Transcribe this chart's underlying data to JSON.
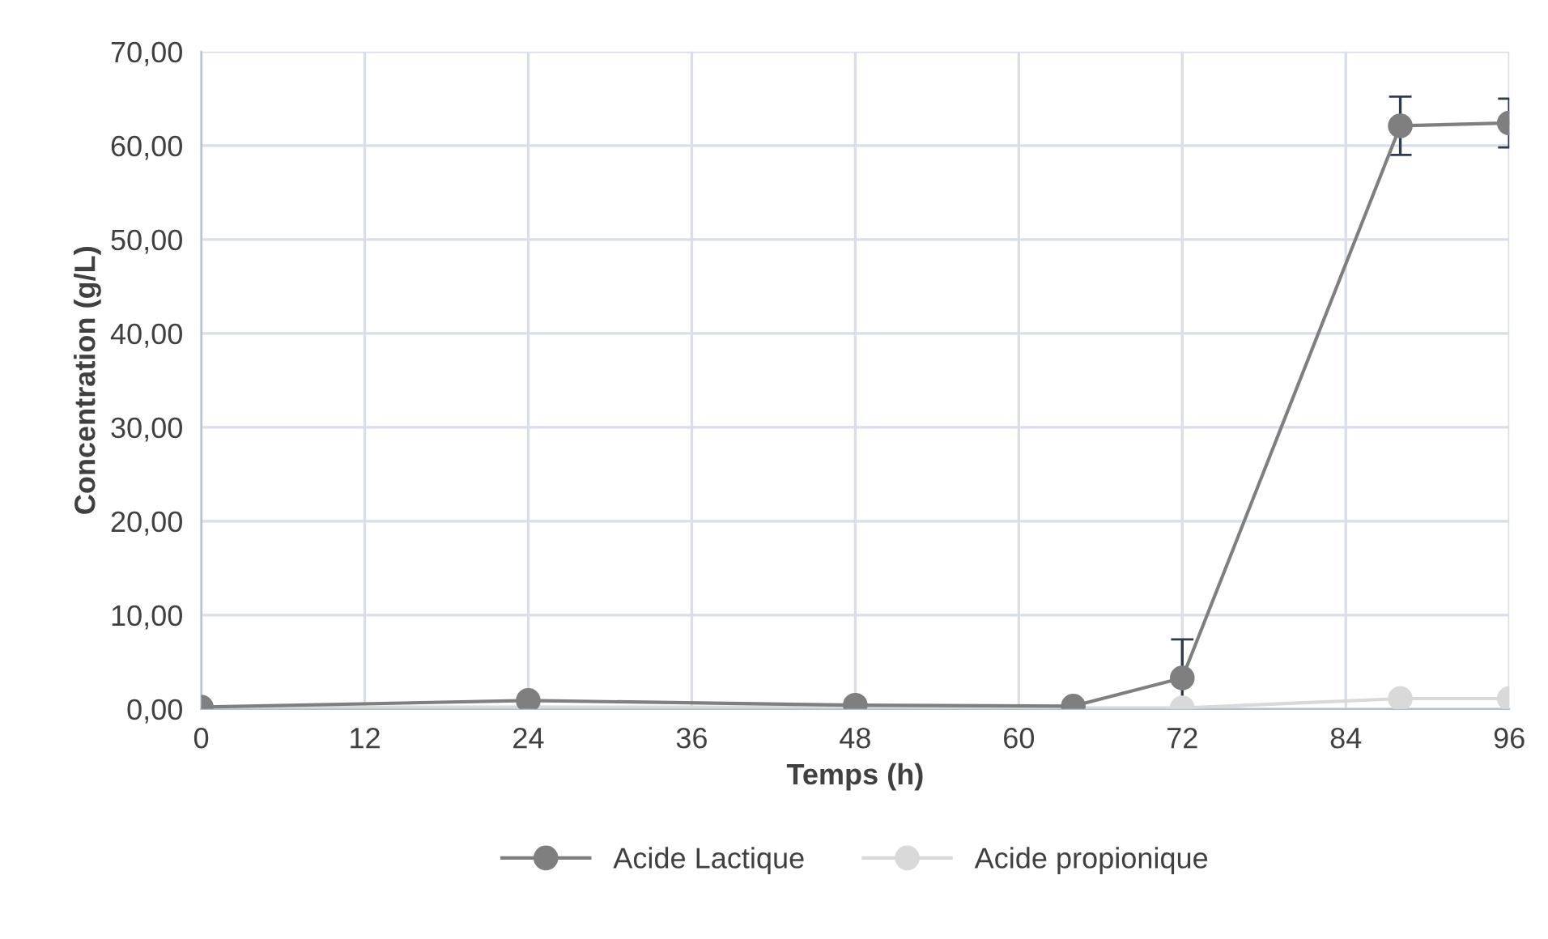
{
  "chart_data": {
    "type": "line",
    "xlabel": "Temps (h)",
    "ylabel": "Concentration (g/L)",
    "x": [
      0,
      24,
      48,
      64,
      72,
      88,
      96
    ],
    "series": [
      {
        "name": "Acide Lactique",
        "color": "#7f7f7f",
        "values": [
          0.2,
          0.9,
          0.4,
          0.3,
          3.3,
          62.1,
          62.4
        ],
        "errors": [
          null,
          null,
          null,
          null,
          4.1,
          3.1,
          2.6
        ]
      },
      {
        "name": "Acide propionique",
        "color": "#d9d9d9",
        "values": [
          0.2,
          0.2,
          0.2,
          0.1,
          0.1,
          1.1,
          1.1
        ]
      }
    ],
    "xlim": [
      0,
      96
    ],
    "xticks": [
      0,
      12,
      24,
      36,
      48,
      60,
      72,
      84,
      96
    ],
    "ylim": [
      0,
      70
    ],
    "yticks": [
      {
        "value": 0,
        "label": "0,00"
      },
      {
        "value": 10,
        "label": "10,00"
      },
      {
        "value": 20,
        "label": "20,00"
      },
      {
        "value": 30,
        "label": "30,00"
      },
      {
        "value": 40,
        "label": "40,00"
      },
      {
        "value": 50,
        "label": "50,00"
      },
      {
        "value": 60,
        "label": "60,00"
      },
      {
        "value": 70,
        "label": "70,00"
      }
    ],
    "grid": true,
    "legend": "bottom",
    "marker": "circle",
    "line_style": "solid"
  }
}
